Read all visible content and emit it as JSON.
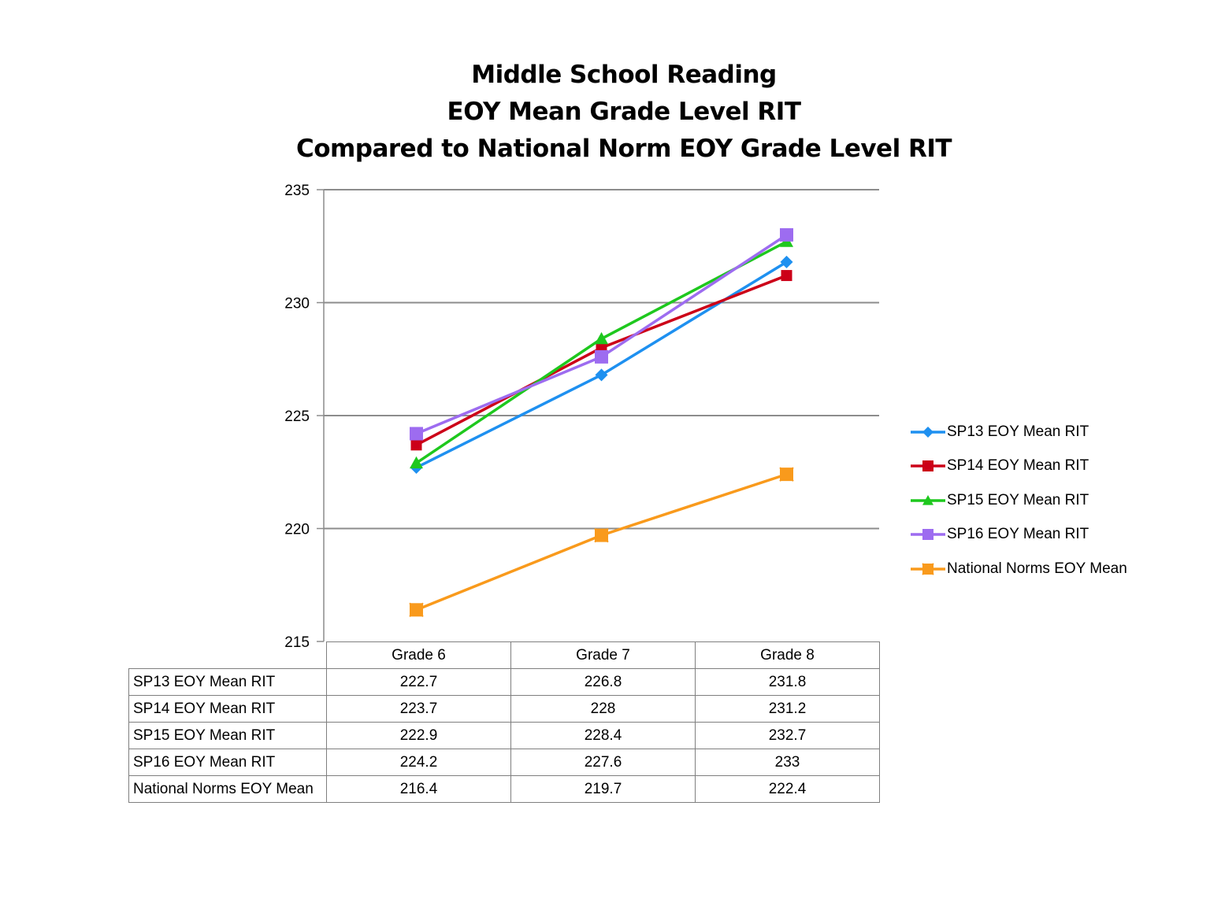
{
  "chart_data": {
    "type": "line",
    "title_lines": [
      "Middle School Reading",
      "EOY Mean Grade Level RIT",
      "Compared to National Norm EOY Grade Level RIT"
    ],
    "categories": [
      "Grade 6",
      "Grade 7",
      "Grade 8"
    ],
    "ylim": [
      215,
      235
    ],
    "yticks": [
      "235",
      "230",
      "225",
      "220",
      "215"
    ],
    "ytick_values": [
      235,
      230,
      225,
      220,
      215
    ],
    "grid": true,
    "legend_position": "right",
    "series": [
      {
        "name": "SP13 EOY Mean RIT",
        "values": [
          222.7,
          226.8,
          231.8
        ],
        "value_labels": [
          "222.7",
          "226.8",
          "231.8"
        ],
        "color": "#1e90f0",
        "marker": "diamond"
      },
      {
        "name": "SP14 EOY Mean RIT",
        "values": [
          223.7,
          228,
          231.2
        ],
        "value_labels": [
          "223.7",
          "228",
          "231.2"
        ],
        "color": "#cc0018",
        "marker": "square"
      },
      {
        "name": "SP15 EOY Mean RIT",
        "values": [
          222.9,
          228.4,
          232.7
        ],
        "value_labels": [
          "222.9",
          "228.4",
          "232.7"
        ],
        "color": "#1ec81e",
        "marker": "triangle"
      },
      {
        "name": "SP16 EOY Mean RIT",
        "values": [
          224.2,
          227.6,
          233
        ],
        "value_labels": [
          "224.2",
          "227.6",
          "233"
        ],
        "color": "#9d6cf0",
        "marker": "square"
      },
      {
        "name": "National Norms EOY Mean",
        "values": [
          216.4,
          219.7,
          222.4
        ],
        "value_labels": [
          "216.4",
          "219.7",
          "222.4"
        ],
        "color": "#f99a1c",
        "marker": "square-star"
      }
    ]
  }
}
